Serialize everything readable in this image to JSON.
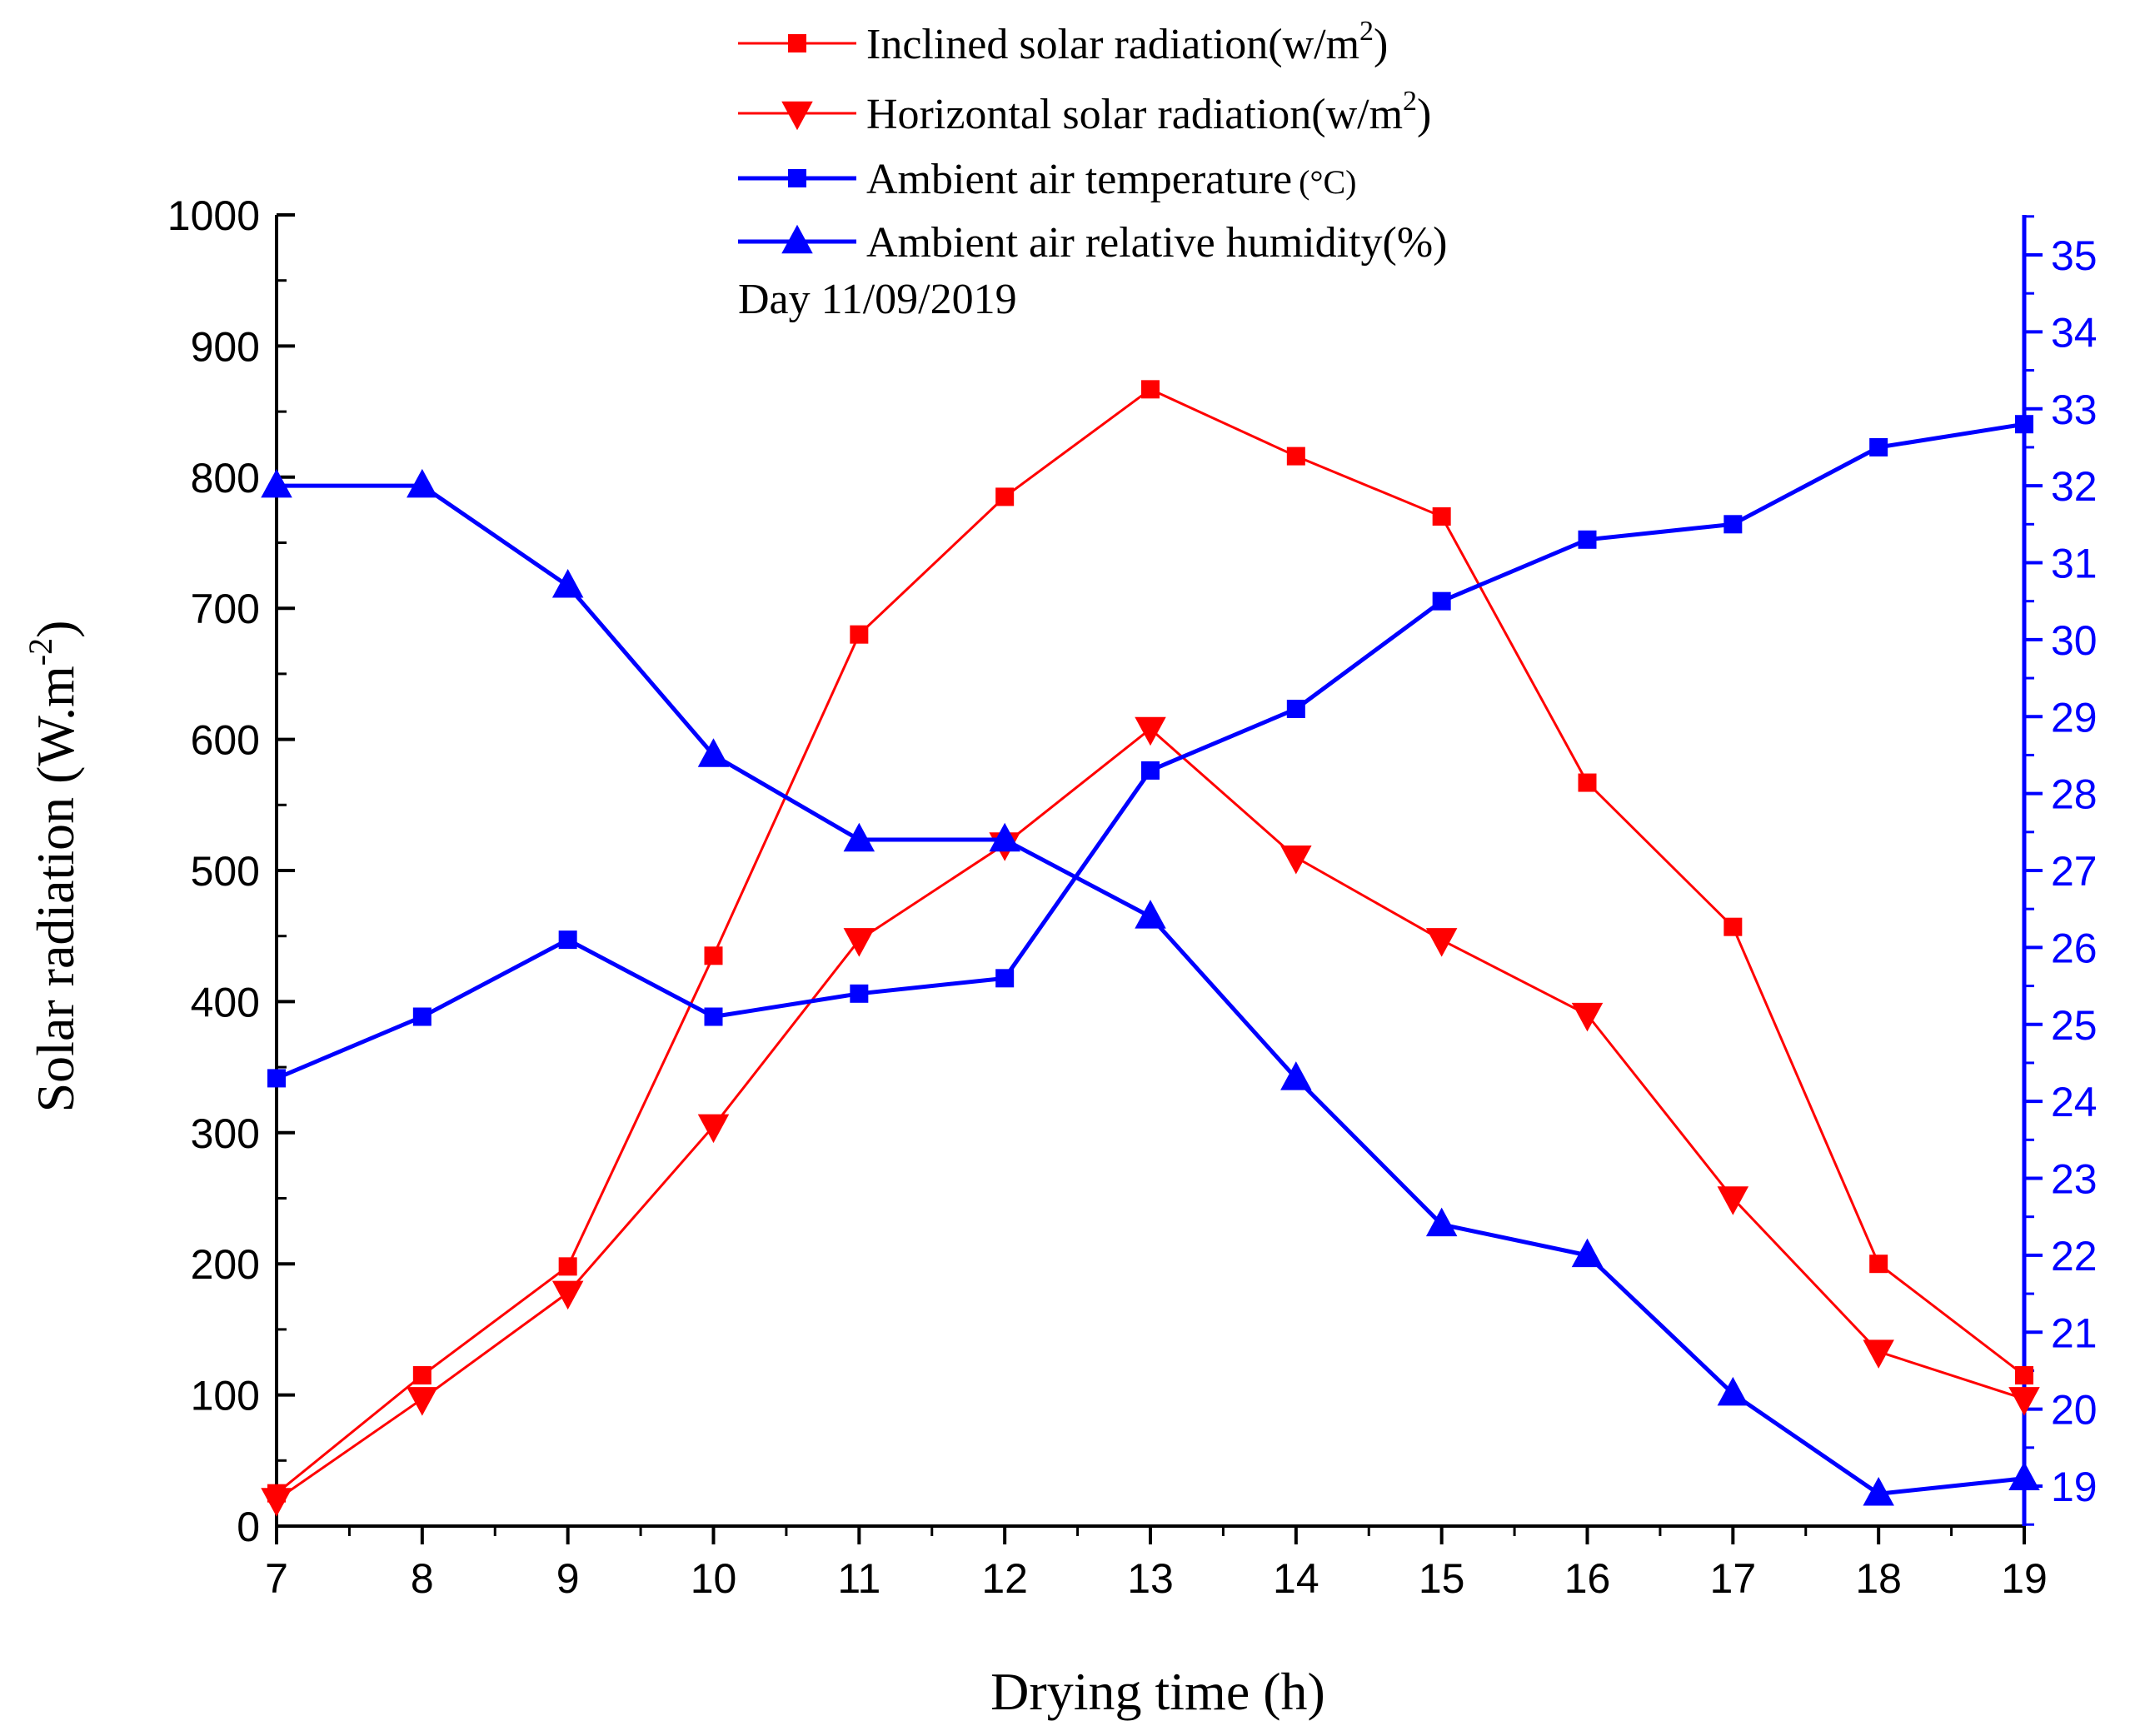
{
  "colors": {
    "red": "#ff0000",
    "blue": "#0000ff",
    "black": "#000000"
  },
  "chart_data": {
    "type": "line",
    "title": "",
    "annotation": "Day 11/09/2019",
    "xlabel": "Drying time (h)",
    "ylabel": "Solar radiation (W.m-2)",
    "ylabel_parts": {
      "main": "Solar radiation (W.m",
      "sup": "-2",
      "end": ")"
    },
    "xlim": [
      7,
      19
    ],
    "ylim": [
      0,
      1000
    ],
    "y2lim": [
      18.5,
      35.5
    ],
    "x_ticks": [
      7,
      8,
      9,
      10,
      11,
      12,
      13,
      14,
      15,
      16,
      17,
      18,
      19
    ],
    "x_tick_labels": [
      "7",
      "8",
      "9",
      "10",
      "11",
      "12",
      "13",
      "14",
      "15",
      "16",
      "17",
      "18",
      "19"
    ],
    "y_ticks": [
      0,
      100,
      200,
      300,
      400,
      500,
      600,
      700,
      800,
      900,
      1000
    ],
    "y_tick_labels": [
      "0",
      "100",
      "200",
      "300",
      "400",
      "500",
      "600",
      "700",
      "800",
      "900",
      "1000"
    ],
    "y2_ticks": [
      19,
      20,
      21,
      22,
      23,
      24,
      25,
      26,
      27,
      28,
      29,
      30,
      31,
      32,
      33,
      34,
      35
    ],
    "y2_tick_labels": [
      "19",
      "20",
      "21",
      "22",
      "23",
      "24",
      "25",
      "26",
      "27",
      "28",
      "29",
      "30",
      "31",
      "32",
      "33",
      "34",
      "35"
    ],
    "x": [
      7,
      8,
      9,
      10,
      11,
      12,
      13,
      14,
      15,
      16,
      17,
      18,
      19
    ],
    "legend_position": "top-center",
    "series": [
      {
        "name": "Inclined solar radiation(w/m2)",
        "label_main": "Inclined solar radiation(w/m",
        "label_sup": "2",
        "label_end": ")",
        "axis": "left",
        "marker": "square",
        "color": "#ff0000",
        "line_width": "thin",
        "values": [
          25,
          115,
          198,
          435,
          680,
          785,
          867,
          816,
          770,
          567,
          457,
          200,
          115
        ]
      },
      {
        "name": "Horizontal solar radiation(w/m2)",
        "label_main": "Horizontal solar radiation(w/m",
        "label_sup": "2",
        "label_end": ")",
        "axis": "left",
        "marker": "triangle-down",
        "color": "#ff0000",
        "line_width": "thin",
        "values": [
          20,
          97,
          178,
          305,
          447,
          520,
          608,
          510,
          447,
          390,
          250,
          133,
          97
        ]
      },
      {
        "name": "Ambient air temperature(°C)",
        "label_main": "Ambient air temperature",
        "label_small": "(°C)",
        "axis": "right",
        "marker": "square",
        "color": "#0000ff",
        "line_width": "thick",
        "values": [
          24.3,
          25.1,
          26.1,
          25.1,
          25.4,
          25.6,
          28.3,
          29.1,
          30.5,
          31.3,
          31.5,
          32.5,
          32.8
        ]
      },
      {
        "name": "Ambient air relative humidity(%)",
        "label_main": "Ambient air relative humidity(%)",
        "axis": "right",
        "marker": "triangle-up",
        "color": "#0000ff",
        "line_width": "thick",
        "values": [
          32.0,
          32.0,
          30.7,
          28.5,
          27.4,
          27.4,
          26.4,
          24.3,
          22.4,
          22.0,
          20.2,
          18.9,
          19.1
        ]
      }
    ]
  }
}
